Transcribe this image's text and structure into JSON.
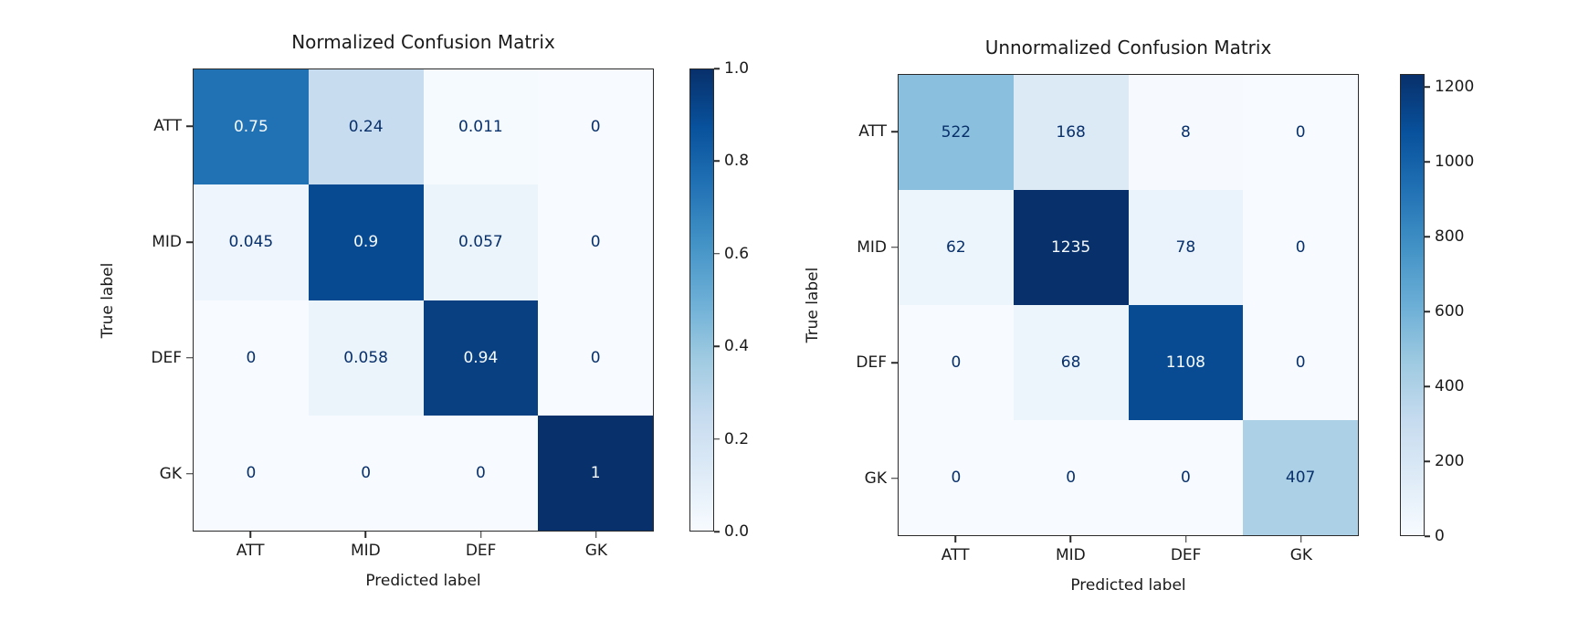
{
  "figure": {
    "background": "#ffffff",
    "text_color": "#1a1a1a",
    "spine_color": "#2a2a2a",
    "cell_text_light": "#f7fbff",
    "cell_text_dark": "#08306b",
    "colormap_name": "Blues",
    "colormap_stops_light_to_dark": [
      "#f7fbff",
      "#deebf7",
      "#c6dbef",
      "#9ecae1",
      "#6baed6",
      "#4292c6",
      "#2171b5",
      "#08519c",
      "#08306b"
    ]
  },
  "chart_data": [
    {
      "type": "heatmap",
      "title": "Normalized Confusion Matrix",
      "xlabel": "Predicted label",
      "ylabel": "True label",
      "x_categories": [
        "ATT",
        "MID",
        "DEF",
        "GK"
      ],
      "y_categories": [
        "ATT",
        "MID",
        "DEF",
        "GK"
      ],
      "values": [
        [
          0.75,
          0.24,
          0.011,
          0
        ],
        [
          0.045,
          0.9,
          0.057,
          0
        ],
        [
          0,
          0.058,
          0.94,
          0
        ],
        [
          0,
          0,
          0,
          1
        ]
      ],
      "cell_labels": [
        [
          "0.75",
          "0.24",
          "0.011",
          "0"
        ],
        [
          "0.045",
          "0.9",
          "0.057",
          "0"
        ],
        [
          "0",
          "0.058",
          "0.94",
          "0"
        ],
        [
          "0",
          "0",
          "0",
          "1"
        ]
      ],
      "cell_colors": [
        [
          "#2171b5",
          "#c8dcf0",
          "#f5fafe",
          "#f7fbff"
        ],
        [
          "#eef5fc",
          "#084a92",
          "#ecf4fb",
          "#f7fbff"
        ],
        [
          "#f7fbff",
          "#ecf4fb",
          "#084082",
          "#f7fbff"
        ],
        [
          "#f7fbff",
          "#f7fbff",
          "#f7fbff",
          "#08306b"
        ]
      ],
      "cell_text_tone": [
        [
          "light",
          "dark",
          "dark",
          "dark"
        ],
        [
          "dark",
          "light",
          "dark",
          "dark"
        ],
        [
          "dark",
          "dark",
          "light",
          "dark"
        ],
        [
          "dark",
          "dark",
          "dark",
          "light"
        ]
      ],
      "vmin": 0,
      "vmax": 1.0,
      "colorbar_ticks": [
        {
          "label": "1.0",
          "value": 1.0
        },
        {
          "label": "0.8",
          "value": 0.8
        },
        {
          "label": "0.6",
          "value": 0.6
        },
        {
          "label": "0.4",
          "value": 0.4
        },
        {
          "label": "0.2",
          "value": 0.2
        },
        {
          "label": "0.0",
          "value": 0.0
        }
      ],
      "grid": false,
      "legend": "colorbar-right"
    },
    {
      "type": "heatmap",
      "title": "Unnormalized Confusion Matrix",
      "xlabel": "Predicted label",
      "ylabel": "True label",
      "x_categories": [
        "ATT",
        "MID",
        "DEF",
        "GK"
      ],
      "y_categories": [
        "ATT",
        "MID",
        "DEF",
        "GK"
      ],
      "values": [
        [
          522,
          168,
          8,
          0
        ],
        [
          62,
          1235,
          78,
          0
        ],
        [
          0,
          68,
          1108,
          0
        ],
        [
          0,
          0,
          0,
          407
        ]
      ],
      "cell_labels": [
        [
          "522",
          "168",
          "8",
          "0"
        ],
        [
          "62",
          "1235",
          "78",
          "0"
        ],
        [
          "0",
          "68",
          "1108",
          "0"
        ],
        [
          "0",
          "0",
          "0",
          "407"
        ]
      ],
      "cell_colors": [
        [
          "#8abfdd",
          "#dceaf6",
          "#f6faff",
          "#f7fbff"
        ],
        [
          "#edf5fc",
          "#08306b",
          "#eaf3fb",
          "#f7fbff"
        ],
        [
          "#f7fbff",
          "#ecf4fc",
          "#084b93",
          "#f7fbff"
        ],
        [
          "#f7fbff",
          "#f7fbff",
          "#f7fbff",
          "#acd0e6"
        ]
      ],
      "cell_text_tone": [
        [
          "dark",
          "dark",
          "dark",
          "dark"
        ],
        [
          "dark",
          "light",
          "dark",
          "dark"
        ],
        [
          "dark",
          "dark",
          "light",
          "dark"
        ],
        [
          "dark",
          "dark",
          "dark",
          "dark"
        ]
      ],
      "vmin": 0,
      "vmax": 1235,
      "colorbar_ticks": [
        {
          "label": "1200",
          "value": 1200
        },
        {
          "label": "1000",
          "value": 1000
        },
        {
          "label": "800",
          "value": 800
        },
        {
          "label": "600",
          "value": 600
        },
        {
          "label": "400",
          "value": 400
        },
        {
          "label": "200",
          "value": 200
        },
        {
          "label": "0",
          "value": 0
        }
      ],
      "grid": false,
      "legend": "colorbar-right"
    }
  ]
}
